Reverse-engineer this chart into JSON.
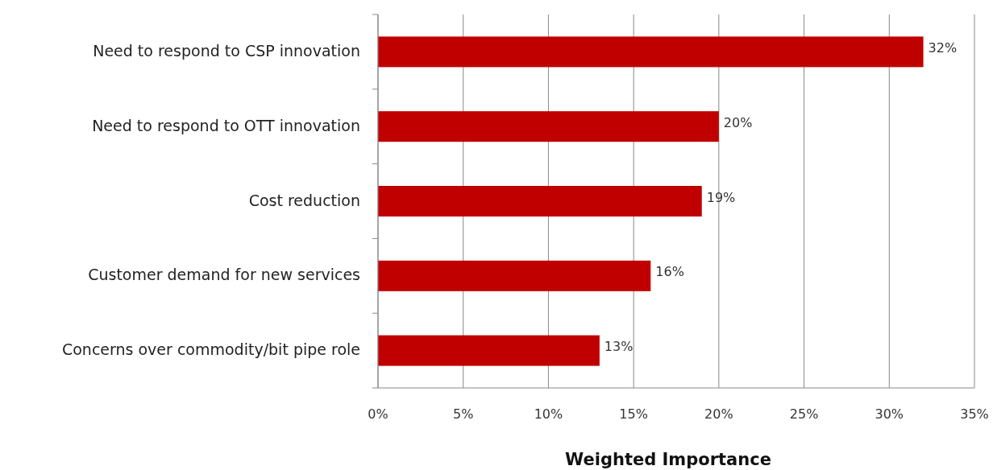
{
  "chart_data": {
    "type": "bar",
    "orientation": "horizontal",
    "xlabel": "Weighted Importance",
    "categories": [
      "Need to respond to CSP innovation",
      "Need to respond to OTT innovation",
      "Cost reduction",
      "Customer demand for new services",
      "Concerns over commodity/bit pipe role"
    ],
    "values": [
      32,
      20,
      19,
      16,
      13
    ],
    "value_labels": [
      "32%",
      "20%",
      "19%",
      "16%",
      "13%"
    ],
    "color": "#c00000",
    "xlim": [
      0,
      35
    ],
    "xticks": [
      {
        "value": 0,
        "label": "0%"
      },
      {
        "value": 5,
        "label": "5%"
      },
      {
        "value": 10,
        "label": "10%"
      },
      {
        "value": 15,
        "label": "15%"
      },
      {
        "value": 20,
        "label": "20%"
      },
      {
        "value": 25,
        "label": "25%"
      },
      {
        "value": 30,
        "label": "30%"
      },
      {
        "value": 35,
        "label": "35%"
      }
    ],
    "grid": "x"
  }
}
